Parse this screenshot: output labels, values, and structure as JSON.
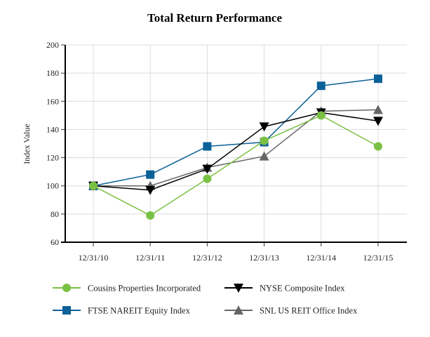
{
  "chart_data": {
    "type": "line",
    "title": "Total Return Performance",
    "xlabel": "",
    "ylabel": "Index Value",
    "categories": [
      "12/31/10",
      "12/31/11",
      "12/31/12",
      "12/31/13",
      "12/31/14",
      "12/31/15"
    ],
    "ylim": [
      60,
      200
    ],
    "yticks": [
      60,
      80,
      100,
      120,
      140,
      160,
      180,
      200
    ],
    "grid": true,
    "legend_position": "bottom",
    "series": [
      {
        "name": "Cousins Properties Incorporated",
        "color": "#7ac143",
        "marker": "circle",
        "values": [
          100,
          79,
          105,
          132,
          150,
          128
        ]
      },
      {
        "name": "NYSE Composite Index",
        "color": "#000000",
        "marker": "triangle-down",
        "values": [
          100,
          97,
          112,
          142,
          152,
          146
        ]
      },
      {
        "name": "FTSE NAREIT Equity Index",
        "color": "#0c6198",
        "marker": "square",
        "values": [
          100,
          108,
          128,
          131,
          171,
          176
        ]
      },
      {
        "name": "SNL US REIT Office Index",
        "color": "#666666",
        "marker": "triangle-up",
        "values": [
          100,
          100,
          113,
          121,
          153,
          154
        ]
      }
    ]
  }
}
